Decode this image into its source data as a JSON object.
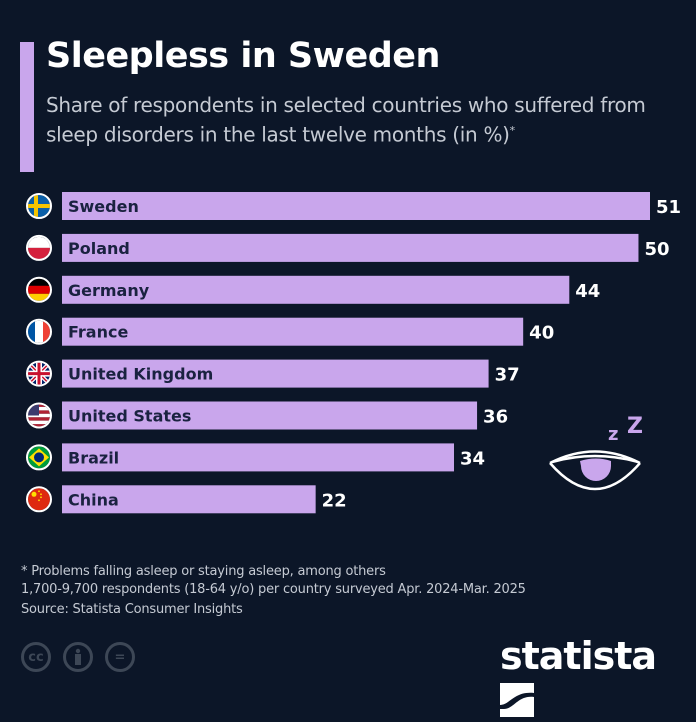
{
  "title": "Sleepless in Sweden",
  "subtitle": "Share of respondents in selected countries who suffered from sleep disorders in the last twelve months (in %)",
  "subtitle_mark": "*",
  "colors": {
    "background": "#0c1628",
    "bar": "#c9a6ec",
    "bar_label": "#1a2240",
    "value_label": "#ffffff"
  },
  "chart_data": {
    "type": "bar",
    "orientation": "horizontal",
    "categories": [
      "Sweden",
      "Poland",
      "Germany",
      "France",
      "United Kingdom",
      "United States",
      "Brazil",
      "China"
    ],
    "values": [
      51,
      50,
      44,
      40,
      37,
      36,
      34,
      22
    ],
    "unit": "%",
    "xlim": [
      0,
      51
    ],
    "grid": false,
    "flag_icons": [
      "flag-sweden",
      "flag-poland",
      "flag-germany",
      "flag-france",
      "flag-uk",
      "flag-usa",
      "flag-brazil",
      "flag-china"
    ]
  },
  "footnotes": {
    "note": "* Problems falling asleep or staying asleep, among others",
    "sample": "1,700-9,700 respondents (18-64 y/o) per country surveyed Apr. 2024-Mar. 2025",
    "source": "Source: Statista Consumer Insights"
  },
  "license_icons": [
    "cc-icon",
    "attribution-icon",
    "no-derivatives-icon"
  ],
  "license_labels": {
    "cc": "cc",
    "nd": "="
  },
  "logo": "statista",
  "decoration": {
    "zz": "z Z",
    "icon": "sleepy-eye-icon"
  }
}
